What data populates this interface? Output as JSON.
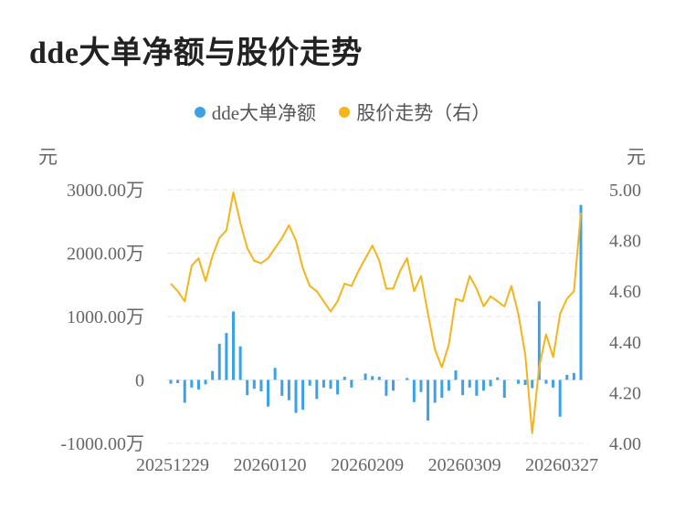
{
  "title": "dde大单净额与股价走势",
  "legend": {
    "series1": "dde大单净额",
    "series2": "股价走势（右）"
  },
  "units": {
    "left": "元",
    "right": "元"
  },
  "colors": {
    "bar": "#3ba1e8",
    "line": "#f4b41a",
    "grid": "#e6e6e6",
    "axis_text": "#666666"
  },
  "chart_data": {
    "type": "bar+line",
    "title": "dde大单净额与股价走势",
    "left_axis": {
      "ticks": [
        -1000,
        0,
        1000,
        2000,
        3000
      ],
      "tick_labels": [
        "-1000.00万",
        "0",
        "1000.00万",
        "2000.00万",
        "3000.00万"
      ],
      "ylim": [
        -1000,
        3000
      ],
      "unit": "元"
    },
    "right_axis": {
      "ticks": [
        4.0,
        4.2,
        4.4,
        4.6,
        4.8,
        5.0
      ],
      "tick_labels": [
        "4.00",
        "4.20",
        "4.40",
        "4.60",
        "4.80",
        "5.00"
      ],
      "ylim": [
        4.0,
        5.0
      ],
      "unit": "元"
    },
    "x_tick_labels": [
      "20251229",
      "20260120",
      "20260209",
      "20260309",
      "20260327"
    ],
    "x_tick_index": [
      0,
      14,
      28,
      42,
      56
    ],
    "grid": true,
    "legend_position": "top",
    "series": [
      {
        "name": "dde大单净额",
        "type": "bar",
        "axis": "left",
        "values": [
          -60,
          -50,
          -360,
          -120,
          -150,
          -70,
          140,
          570,
          740,
          1080,
          530,
          -240,
          -140,
          -180,
          -420,
          190,
          -250,
          -320,
          -520,
          -470,
          -90,
          -300,
          -120,
          -140,
          -230,
          50,
          -120,
          0,
          100,
          60,
          50,
          -250,
          -170,
          0,
          30,
          -350,
          -190,
          -640,
          -360,
          -280,
          -170,
          150,
          -240,
          -120,
          -250,
          -170,
          -100,
          40,
          -280,
          0,
          -60,
          -80,
          -130,
          1240,
          -60,
          -120,
          -580,
          80,
          110,
          2760
        ],
        "unit": "万"
      },
      {
        "name": "股价走势（右）",
        "type": "line",
        "axis": "right",
        "values": [
          4.63,
          4.6,
          4.56,
          4.7,
          4.73,
          4.64,
          4.74,
          4.81,
          4.84,
          4.99,
          4.87,
          4.77,
          4.72,
          4.71,
          4.73,
          4.77,
          4.81,
          4.86,
          4.8,
          4.69,
          4.62,
          4.6,
          4.56,
          4.52,
          4.56,
          4.63,
          4.62,
          4.68,
          4.73,
          4.78,
          4.72,
          4.61,
          4.61,
          4.68,
          4.73,
          4.6,
          4.66,
          4.51,
          4.37,
          4.3,
          4.39,
          4.57,
          4.56,
          4.66,
          4.61,
          4.54,
          4.58,
          4.56,
          4.54,
          4.62,
          4.51,
          4.35,
          4.04,
          4.3,
          4.43,
          4.34,
          4.51,
          4.57,
          4.6,
          4.91
        ]
      }
    ]
  }
}
